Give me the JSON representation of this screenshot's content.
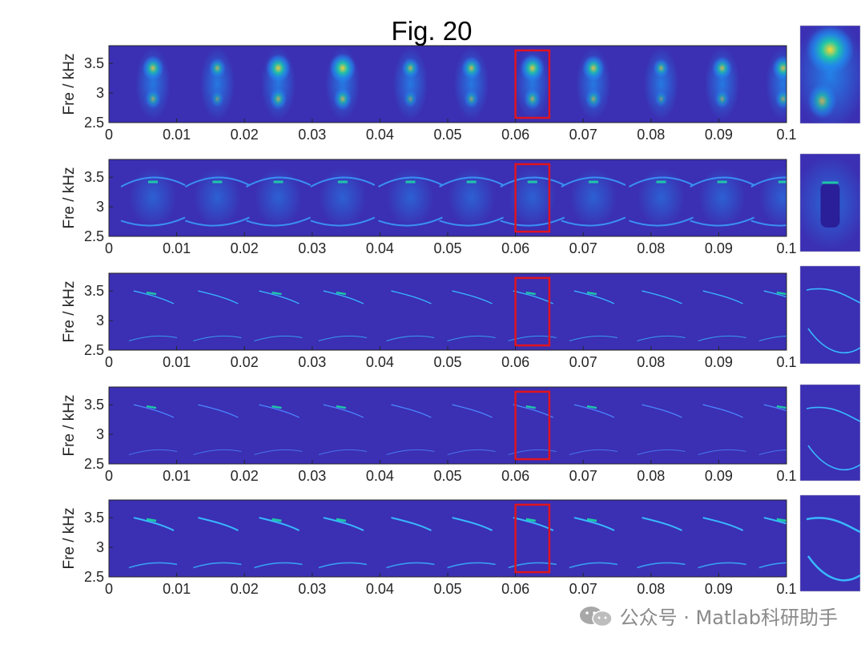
{
  "chart_data": {
    "type": "heatmap",
    "title": "Fig. 20",
    "panels": [
      {
        "id": "p1",
        "ylabel": "Fre / kHz",
        "style": "stft-smooth"
      },
      {
        "id": "p2",
        "ylabel": "Fre / kHz",
        "style": "edges"
      },
      {
        "id": "p3",
        "ylabel": "Fre / kHz",
        "style": "ridges-thin"
      },
      {
        "id": "p4",
        "ylabel": "Fre / kHz",
        "style": "ridges-noisy"
      },
      {
        "id": "p5",
        "ylabel": "Fre / kHz",
        "style": "ridges-sharp"
      }
    ],
    "xlim": [
      0,
      0.1
    ],
    "ylim": [
      2.5,
      3.8
    ],
    "xticks": [
      "0",
      "0.01",
      "0.02",
      "0.03",
      "0.04",
      "0.05",
      "0.06",
      "0.07",
      "0.08",
      "0.09",
      "0.1"
    ],
    "yticks": [
      "2.5",
      "3",
      "3.5"
    ],
    "highlight_box": {
      "x": [
        0.06,
        0.065
      ],
      "y": [
        2.58,
        3.72
      ],
      "color": "#e0141e"
    },
    "cycle_centers_s": [
      0.0065,
      0.016,
      0.025,
      0.0345,
      0.0445,
      0.0535,
      0.0625,
      0.0715,
      0.0815,
      0.0905,
      0.0995
    ],
    "cycle_strength": [
      0.55,
      0.25,
      0.75,
      0.85,
      0.3,
      0.45,
      0.7,
      0.6,
      0.2,
      0.45,
      0.55
    ],
    "colors": {
      "background": "#3b2fb3",
      "mid": "#1f8ff0",
      "high": "#1ec7a8",
      "peak": "#fbd633"
    }
  },
  "watermark": {
    "text": "公众号 · Matlab科研助手"
  }
}
